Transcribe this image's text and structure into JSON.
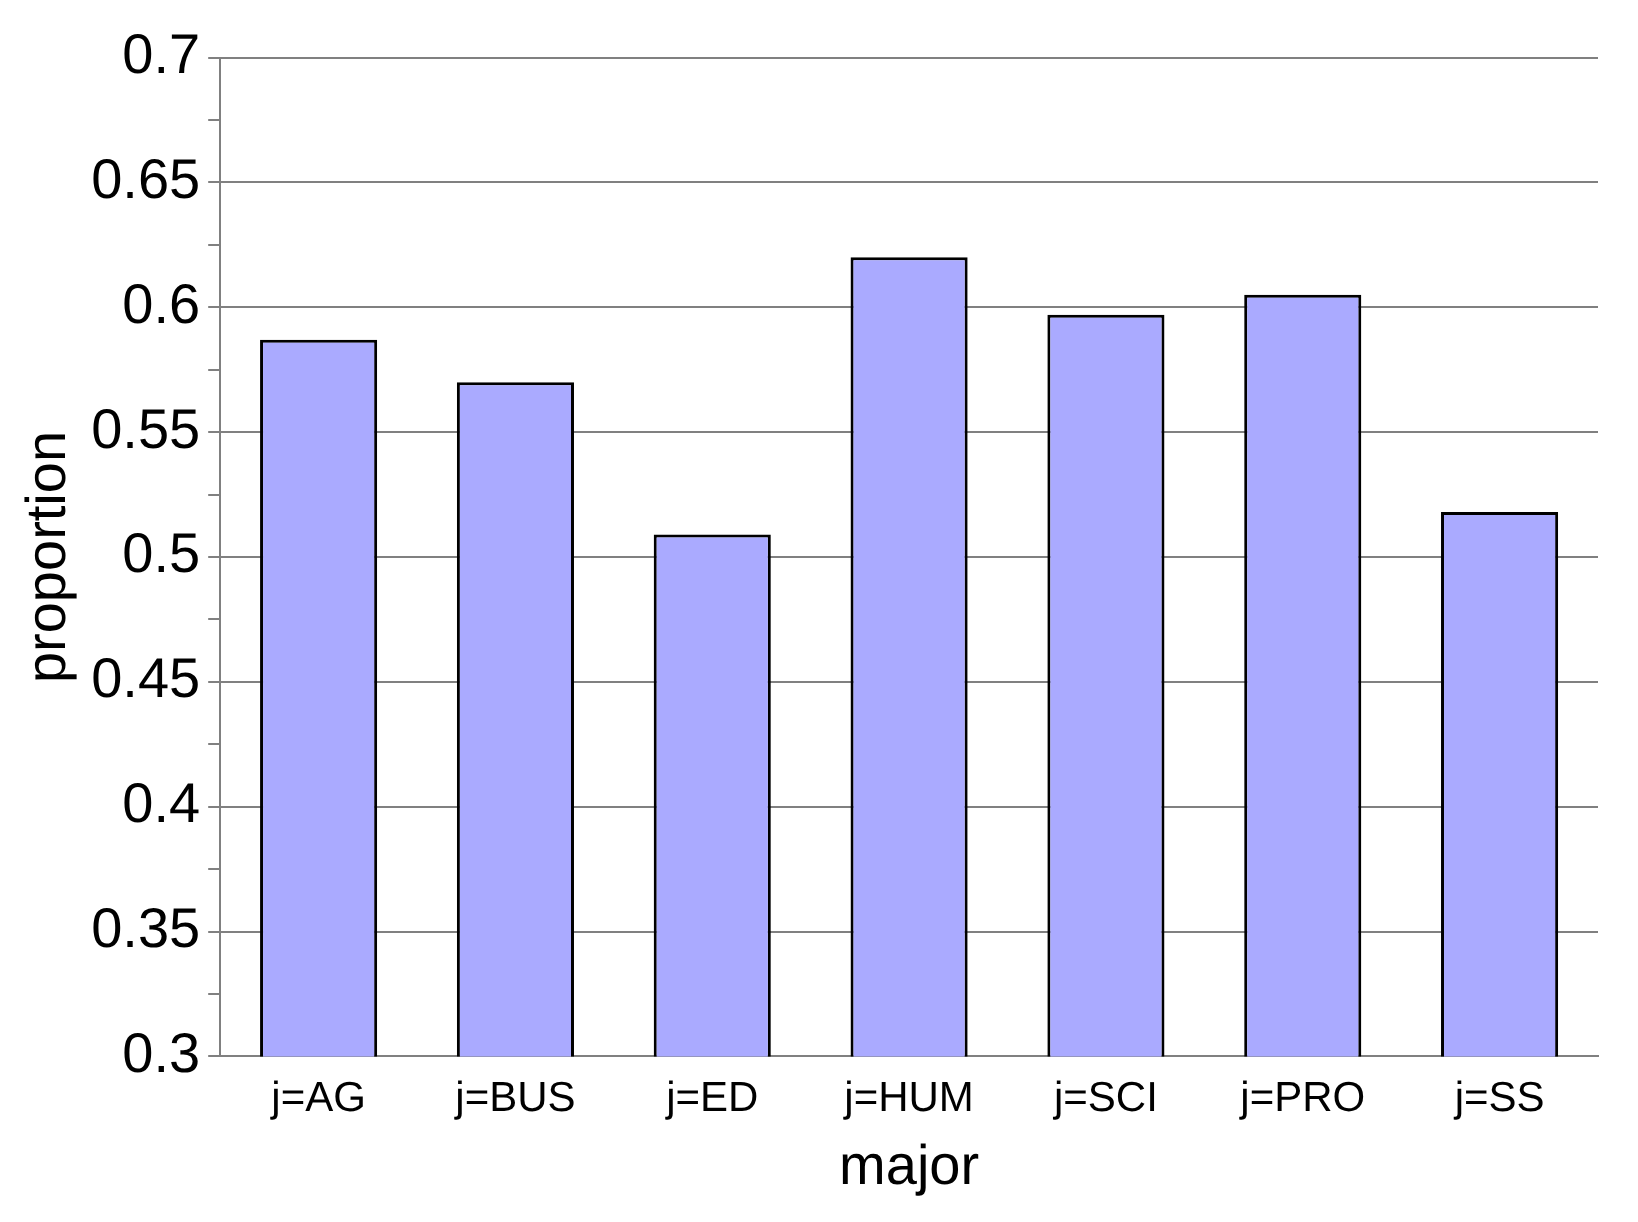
{
  "chart_data": {
    "type": "bar",
    "xlabel": "major",
    "ylabel": "proportion",
    "categories": [
      "j=AG",
      "j=BUS",
      "j=ED",
      "j=HUM",
      "j=SCI",
      "j=PRO",
      "j=SS"
    ],
    "values": [
      0.587,
      0.57,
      0.509,
      0.62,
      0.597,
      0.605,
      0.518
    ],
    "color": "#aaaaff",
    "ylim": [
      0.3,
      0.7
    ],
    "yticks": [
      0.3,
      {
        "value": 0.325,
        "label": null
      },
      0.35,
      {
        "value": 0.375,
        "label": null
      },
      0.4,
      {
        "value": 0.425,
        "label": null
      },
      0.45,
      {
        "value": 0.475,
        "label": null
      },
      0.5,
      {
        "value": 0.525,
        "label": null
      },
      0.55,
      {
        "value": 0.575,
        "label": null
      },
      0.6,
      {
        "value": 0.625,
        "label": null
      },
      0.65,
      {
        "value": 0.675,
        "label": null
      },
      0.7
    ],
    "grid": "y"
  }
}
